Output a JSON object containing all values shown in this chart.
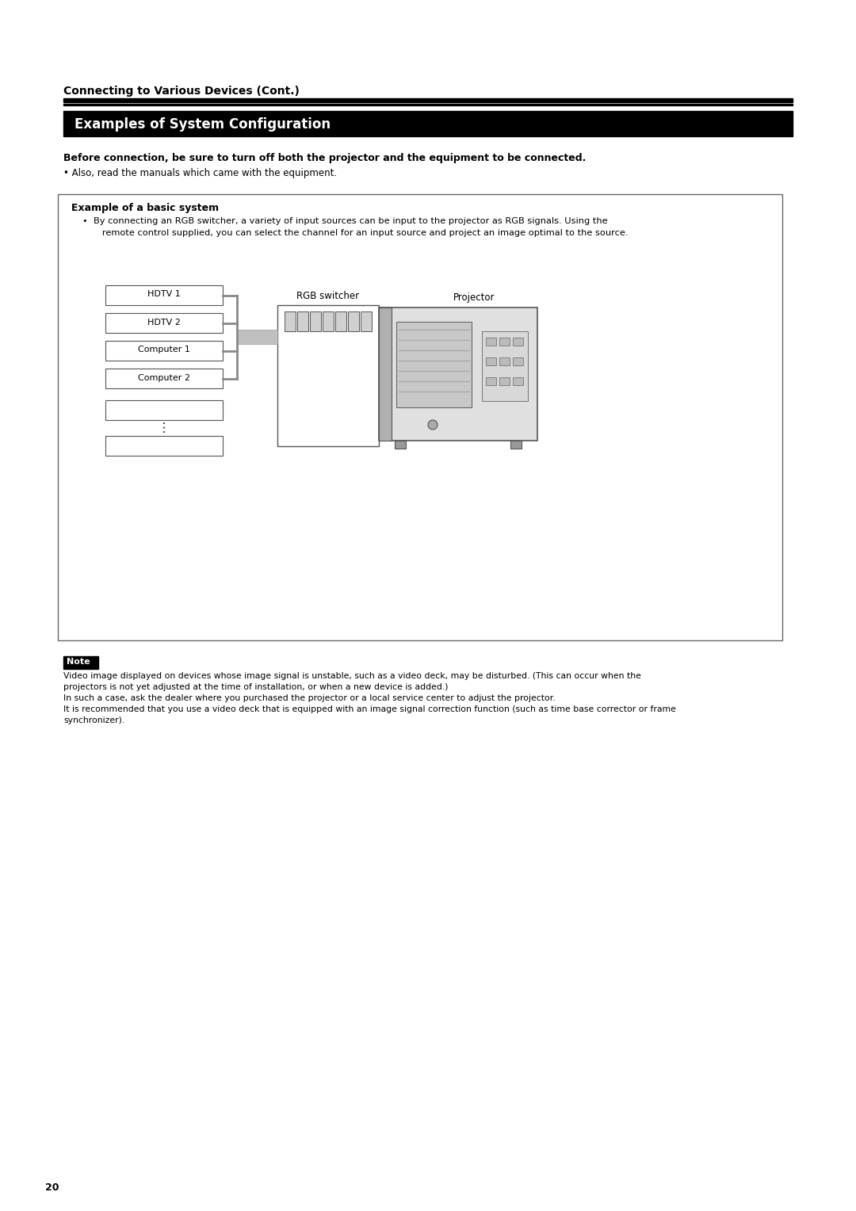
{
  "page_bg": "#ffffff",
  "page_number": "20",
  "section_title": "Connecting to Various Devices (Cont.)",
  "header_title": "Examples of System Configuration",
  "header_bg": "#000000",
  "header_fg": "#ffffff",
  "bold_warning": "Before connection, be sure to turn off both the projector and the equipment to be connected.",
  "bullet_warning": "• Also, read the manuals which came with the equipment.",
  "box_title": "Example of a basic system",
  "box_text_line1": "•  By connecting an RGB switcher, a variety of input sources can be input to the projector as RGB signals. Using the",
  "box_text_line2": "   remote control supplied, you can select the channel for an input source and project an image optimal to the source.",
  "device_labels": [
    "HDTV 1",
    "HDTV 2",
    "Computer 1",
    "Computer 2",
    "",
    ""
  ],
  "rgb_switcher_label": "RGB switcher",
  "projector_label": "Projector",
  "note_label": "Note",
  "note_line1": "Video image displayed on devices whose image signal is unstable, such as a video deck, may be disturbed. (This can occur when the",
  "note_line2": "projectors is not yet adjusted at the time of installation, or when a new device is added.)",
  "note_line3": "In such a case, ask the dealer where you purchased the projector or a local service center to adjust the projector.",
  "note_line4": "It is recommended that you use a video deck that is equipped with an image signal correction function (such as time base corrector or frame",
  "note_line5": "synchronizer)."
}
